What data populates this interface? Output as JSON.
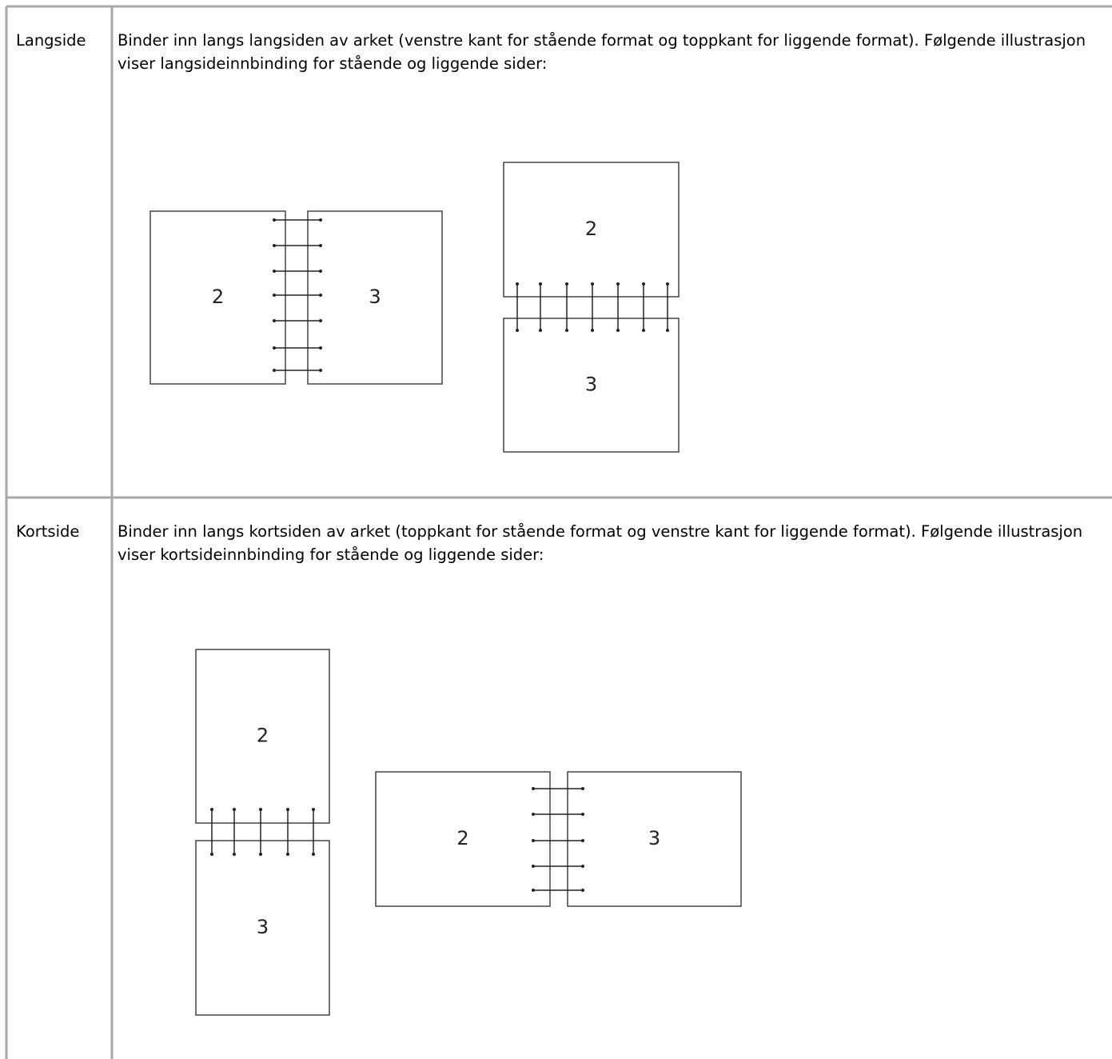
{
  "table": {
    "rows": [
      {
        "label": "Langside",
        "text": "Binder inn langs langsiden av arket (venstre kant for stående format og toppkant for liggende format). Følgende illustrasjon viser langsideinnbinding for stående og liggende sider:",
        "figures": [
          {
            "pages": [
              "2",
              "3"
            ]
          },
          {
            "pages": [
              "2",
              "3"
            ]
          }
        ]
      },
      {
        "label": "Kortside",
        "text": "Binder inn langs kortsiden av arket (toppkant for stående format og venstre kant for liggende format). Følgende illustrasjon viser kortsideinnbinding for stående og liggende sider:",
        "figures": [
          {
            "pages": [
              "2",
              "3"
            ]
          },
          {
            "pages": [
              "2",
              "3"
            ]
          }
        ]
      }
    ]
  }
}
